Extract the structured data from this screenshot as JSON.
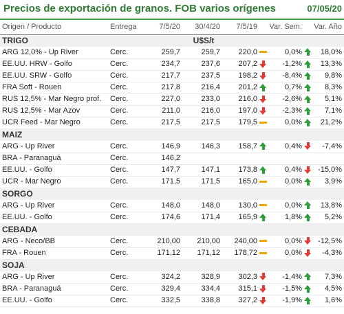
{
  "title": "Precios de exportación de granos. FOB varios orígenes",
  "date": "07/05/20",
  "colors": {
    "title": "#2e7d32",
    "up": "#2e9e3a",
    "down": "#e53935",
    "flat": "#f0a400"
  },
  "columns": [
    "Origen / Producto",
    "Entrega",
    "7/5/20",
    "30/4/20",
    "7/5/19",
    "Var. Sem.",
    "Var. Año"
  ],
  "sections": [
    {
      "name": "TRIGO",
      "unit": "U$S/t",
      "rows": [
        {
          "name": "ARG 12,0% - Up River",
          "entrega": "Cerc.",
          "v1": "259,7",
          "v2": "259,7",
          "v3": "220,0",
          "i1": "flat",
          "sem": "0,0%",
          "i2": "up",
          "ano": "18,0%"
        },
        {
          "name": "EE.UU. HRW - Golfo",
          "entrega": "Cerc.",
          "v1": "234,7",
          "v2": "237,6",
          "v3": "207,2",
          "i1": "down",
          "sem": "-1,2%",
          "i2": "up",
          "ano": "13,3%"
        },
        {
          "name": "EE.UU. SRW - Golfo",
          "entrega": "Cerc.",
          "v1": "217,7",
          "v2": "237,5",
          "v3": "198,2",
          "i1": "down",
          "sem": "-8,4%",
          "i2": "up",
          "ano": "9,8%"
        },
        {
          "name": "FRA Soft - Rouen",
          "entrega": "Cerc.",
          "v1": "217,8",
          "v2": "216,4",
          "v3": "201,2",
          "i1": "up",
          "sem": "0,7%",
          "i2": "up",
          "ano": "8,3%"
        },
        {
          "name": "RUS 12,5% - Mar Negro prof.",
          "entrega": "Cerc.",
          "v1": "227,0",
          "v2": "233,0",
          "v3": "216,0",
          "i1": "down",
          "sem": "-2,6%",
          "i2": "up",
          "ano": "5,1%"
        },
        {
          "name": "RUS 12,5% - Mar Azov",
          "entrega": "Cerc.",
          "v1": "211,0",
          "v2": "216,0",
          "v3": "197,0",
          "i1": "down",
          "sem": "-2,3%",
          "i2": "up",
          "ano": "7,1%"
        },
        {
          "name": "UCR Feed - Mar Negro",
          "entrega": "Cerc.",
          "v1": "217,5",
          "v2": "217,5",
          "v3": "179,5",
          "i1": "flat",
          "sem": "0,0%",
          "i2": "up",
          "ano": "21,2%"
        }
      ]
    },
    {
      "name": "MAIZ",
      "unit": "",
      "rows": [
        {
          "name": "ARG - Up River",
          "entrega": "Cerc.",
          "v1": "146,9",
          "v2": "146,3",
          "v3": "158,7",
          "i1": "up",
          "sem": "0,4%",
          "i2": "down",
          "ano": "-7,4%"
        },
        {
          "name": "BRA - Paranaguá",
          "entrega": "Cerc.",
          "v1": "146,2",
          "v2": "",
          "v3": "",
          "i1": "",
          "sem": "",
          "i2": "",
          "ano": ""
        },
        {
          "name": "EE.UU. - Golfo",
          "entrega": "Cerc.",
          "v1": "147,7",
          "v2": "147,1",
          "v3": "173,8",
          "i1": "up",
          "sem": "0,4%",
          "i2": "down",
          "ano": "-15,0%"
        },
        {
          "name": "UCR - Mar Negro",
          "entrega": "Cerc.",
          "v1": "171,5",
          "v2": "171,5",
          "v3": "165,0",
          "i1": "flat",
          "sem": "0,0%",
          "i2": "up",
          "ano": "3,9%"
        }
      ]
    },
    {
      "name": "SORGO",
      "unit": "",
      "rows": [
        {
          "name": "ARG - Up River",
          "entrega": "Cerc.",
          "v1": "148,0",
          "v2": "148,0",
          "v3": "130,0",
          "i1": "flat",
          "sem": "0,0%",
          "i2": "up",
          "ano": "13,8%"
        },
        {
          "name": "EE.UU. - Golfo",
          "entrega": "Cerc.",
          "v1": "174,6",
          "v2": "171,4",
          "v3": "165,9",
          "i1": "up",
          "sem": "1,8%",
          "i2": "up",
          "ano": "5,2%"
        }
      ]
    },
    {
      "name": "CEBADA",
      "unit": "",
      "rows": [
        {
          "name": "ARG - Neco/BB",
          "entrega": "Cerc.",
          "v1": "210,00",
          "v2": "210,00",
          "v3": "240,00",
          "i1": "flat",
          "sem": "0,0%",
          "i2": "down",
          "ano": "-12,5%"
        },
        {
          "name": "FRA - Rouen",
          "entrega": "Cerc.",
          "v1": "171,12",
          "v2": "171,12",
          "v3": "178,72",
          "i1": "flat",
          "sem": "0,0%",
          "i2": "down",
          "ano": "-4,3%"
        }
      ]
    },
    {
      "name": "SOJA",
      "unit": "",
      "rows": [
        {
          "name": "ARG - Up River",
          "entrega": "Cerc.",
          "v1": "324,2",
          "v2": "328,9",
          "v3": "302,3",
          "i1": "down",
          "sem": "-1,4%",
          "i2": "up",
          "ano": "7,3%"
        },
        {
          "name": "BRA - Paranaguá",
          "entrega": "Cerc.",
          "v1": "329,4",
          "v2": "334,4",
          "v3": "315,1",
          "i1": "down",
          "sem": "-1,5%",
          "i2": "up",
          "ano": "4,5%"
        },
        {
          "name": "EE.UU. - Golfo",
          "entrega": "Cerc.",
          "v1": "332,5",
          "v2": "338,8",
          "v3": "327,2",
          "i1": "down",
          "sem": "-1,9%",
          "i2": "up",
          "ano": "1,6%"
        }
      ]
    }
  ]
}
